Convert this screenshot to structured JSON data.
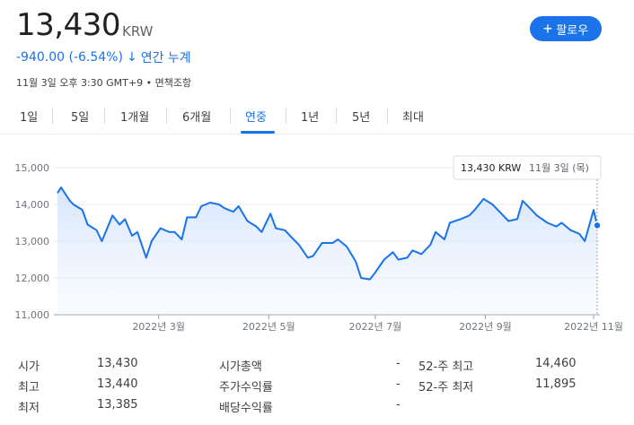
{
  "header": {
    "price": "13,430",
    "currency": "KRW",
    "follow_label": "팔로우",
    "change": "-940.00 (-6.54%)",
    "change_period": "연간 누계",
    "meta": "11월 3일 오후 3:30 GMT+9 • 면책조항"
  },
  "tabs": [
    {
      "label": "1일"
    },
    {
      "label": "5일"
    },
    {
      "label": "1개월"
    },
    {
      "label": "6개월"
    },
    {
      "label": "연중"
    },
    {
      "label": "1년"
    },
    {
      "label": "5년"
    },
    {
      "label": "최대"
    }
  ],
  "active_tab": "연중",
  "chart_data": {
    "type": "area",
    "y_ticks": [
      "15,000",
      "14,000",
      "13,000",
      "12,000",
      "11,000"
    ],
    "ylim": [
      11000,
      15000
    ],
    "x_tick_labels": [
      "2022년 3월",
      "2022년 5월",
      "2022년 7월",
      "2022년 9월",
      "2022년 11월"
    ],
    "x_tick_dates": [
      "2022-03-01",
      "2022-05-02",
      "2022-07-01",
      "2022-09-01",
      "2022-11-01"
    ],
    "x": [
      "2022-01-03",
      "2022-01-05",
      "2022-01-10",
      "2022-01-12",
      "2022-01-17",
      "2022-01-20",
      "2022-01-25",
      "2022-01-28",
      "2022-02-03",
      "2022-02-07",
      "2022-02-10",
      "2022-02-14",
      "2022-02-17",
      "2022-02-22",
      "2022-02-25",
      "2022-03-02",
      "2022-03-07",
      "2022-03-10",
      "2022-03-14",
      "2022-03-17",
      "2022-03-22",
      "2022-03-25",
      "2022-03-30",
      "2022-04-04",
      "2022-04-07",
      "2022-04-12",
      "2022-04-15",
      "2022-04-20",
      "2022-04-25",
      "2022-04-28",
      "2022-05-03",
      "2022-05-06",
      "2022-05-11",
      "2022-05-16",
      "2022-05-19",
      "2022-05-24",
      "2022-05-27",
      "2022-06-01",
      "2022-06-07",
      "2022-06-10",
      "2022-06-15",
      "2022-06-20",
      "2022-06-23",
      "2022-06-28",
      "2022-07-01",
      "2022-07-06",
      "2022-07-11",
      "2022-07-14",
      "2022-07-19",
      "2022-07-22",
      "2022-07-27",
      "2022-08-01",
      "2022-08-04",
      "2022-08-09",
      "2022-08-12",
      "2022-08-18",
      "2022-08-23",
      "2022-08-26",
      "2022-08-31",
      "2022-09-05",
      "2022-09-08",
      "2022-09-14",
      "2022-09-19",
      "2022-09-22",
      "2022-09-27",
      "2022-09-30",
      "2022-10-06",
      "2022-10-11",
      "2022-10-14",
      "2022-10-19",
      "2022-10-24",
      "2022-10-27",
      "2022-11-01",
      "2022-11-03"
    ],
    "values": [
      14310,
      14460,
      14100,
      14000,
      13850,
      13450,
      13300,
      13000,
      13700,
      13450,
      13600,
      13150,
      13250,
      12550,
      13000,
      13350,
      13250,
      13250,
      13050,
      13650,
      13650,
      13950,
      14050,
      14000,
      13900,
      13800,
      13950,
      13550,
      13400,
      13250,
      13750,
      13350,
      13300,
      13050,
      12900,
      12550,
      12600,
      12950,
      12950,
      13050,
      12850,
      12450,
      12000,
      11960,
      12150,
      12500,
      12700,
      12500,
      12550,
      12750,
      12650,
      12900,
      13250,
      13050,
      13500,
      13600,
      13700,
      13850,
      14150,
      14000,
      13850,
      13550,
      13600,
      14100,
      13850,
      13700,
      13500,
      13400,
      13500,
      13300,
      13200,
      13000,
      13850,
      13430
    ],
    "current_label": "13,430 KRW",
    "current_date": "11월 3일 (목)"
  },
  "stats": {
    "rows": [
      {
        "label": "시가",
        "value": "13,430",
        "label2": "시가총액",
        "value2": "-",
        "label3": "52-주 최고",
        "value3": "14,460"
      },
      {
        "label": "최고",
        "value": "13,440",
        "label2": "주가수익률",
        "value2": "-",
        "label3": "52-주 최저",
        "value3": "11,895"
      },
      {
        "label": "최저",
        "value": "13,385",
        "label2": "배당수익률",
        "value2": "-",
        "label3": "",
        "value3": ""
      }
    ]
  },
  "colors": {
    "line": "#1a73e8",
    "fill_top": "#d2e3fc",
    "tick": "#70757a"
  }
}
